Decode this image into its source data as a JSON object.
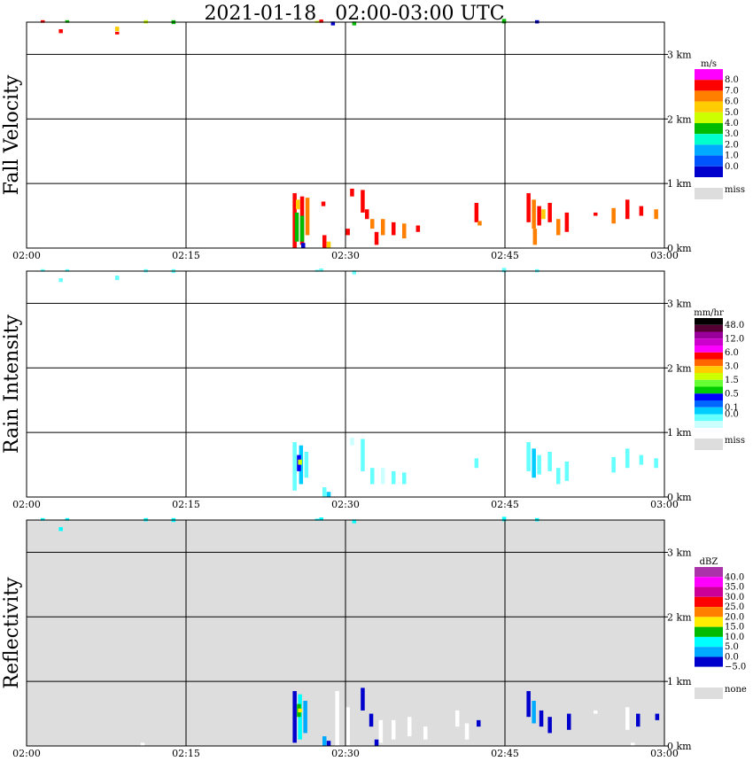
{
  "title": "2021-01-18   02:00-03:00 UTC",
  "time_ticks": [
    "02:00",
    "02:15",
    "02:30",
    "02:45",
    "03:00"
  ],
  "height_ticks": [
    "0 km",
    "1 km",
    "2 km",
    "3 km"
  ],
  "chart_data": [
    {
      "type": "heatmap",
      "name": "fall-velocity",
      "ylabel": "Fall Velocity",
      "xlim": [
        "02:00",
        "03:00"
      ],
      "ylim_km": [
        0,
        3.5
      ],
      "background": "#ffffff",
      "colorbar": {
        "unit": "m/s",
        "labels": [
          "8.0",
          "7.0",
          "6.0",
          "5.0",
          "4.0",
          "3.0",
          "2.0",
          "1.0",
          "0.0"
        ],
        "colors": [
          "#ff00ff",
          "#ff0000",
          "#ff7f00",
          "#ffcc00",
          "#ccff00",
          "#00bb00",
          "#00ffcc",
          "#00aaff",
          "#0055ff",
          "#0000cc"
        ],
        "missing_label": "miss",
        "missing_color": "#dddddd"
      },
      "cells": [
        {
          "t": 1.5,
          "h0": 3.49,
          "h1": 3.53,
          "c": 1
        },
        {
          "t": 3.2,
          "h0": 3.33,
          "h1": 3.39,
          "c": 1
        },
        {
          "t": 3.8,
          "h0": 3.49,
          "h1": 3.53,
          "c": 5
        },
        {
          "t": 8.5,
          "h0": 3.36,
          "h1": 3.43,
          "c": 3
        },
        {
          "t": 8.5,
          "h0": 3.31,
          "h1": 3.35,
          "c": 1
        },
        {
          "t": 11.2,
          "h0": 3.48,
          "h1": 3.53,
          "c": 4
        },
        {
          "t": 13.8,
          "h0": 3.47,
          "h1": 3.53,
          "c": 5
        },
        {
          "t": 27.3,
          "h0": 3.49,
          "h1": 3.52,
          "c": 4
        },
        {
          "t": 27.7,
          "h0": 3.49,
          "h1": 3.54,
          "c": 1
        },
        {
          "t": 28.8,
          "h0": 3.45,
          "h1": 3.51,
          "c": 9
        },
        {
          "t": 30.8,
          "h0": 3.45,
          "h1": 3.51,
          "c": 5
        },
        {
          "t": 44.9,
          "h0": 3.48,
          "h1": 3.55,
          "c": 5
        },
        {
          "t": 48.0,
          "h0": 3.48,
          "h1": 3.53,
          "c": 9
        },
        {
          "t": 25.2,
          "h0": 0.0,
          "h1": 0.85,
          "c": 1
        },
        {
          "t": 25.9,
          "h0": 0.05,
          "h1": 0.8,
          "c": 1
        },
        {
          "t": 26.4,
          "h0": 0.2,
          "h1": 0.78,
          "c": 2
        },
        {
          "t": 25.4,
          "h0": 0.1,
          "h1": 0.55,
          "c": 5
        },
        {
          "t": 25.9,
          "h0": 0.1,
          "h1": 0.5,
          "c": 5
        },
        {
          "t": 25.5,
          "h0": 0.6,
          "h1": 0.75,
          "c": 3
        },
        {
          "t": 26.0,
          "h0": 0.0,
          "h1": 0.08,
          "c": 9
        },
        {
          "t": 27.9,
          "h0": 0.65,
          "h1": 0.72,
          "c": 1
        },
        {
          "t": 28.0,
          "h0": 0.0,
          "h1": 0.2,
          "c": 1
        },
        {
          "t": 28.4,
          "h0": 0.0,
          "h1": 0.1,
          "c": 3
        },
        {
          "t": 30.6,
          "h0": 0.8,
          "h1": 0.92,
          "c": 1
        },
        {
          "t": 31.6,
          "h0": 0.55,
          "h1": 0.9,
          "c": 1
        },
        {
          "t": 32.0,
          "h0": 0.45,
          "h1": 0.6,
          "c": 1
        },
        {
          "t": 32.5,
          "h0": 0.3,
          "h1": 0.45,
          "c": 2
        },
        {
          "t": 30.2,
          "h0": 0.2,
          "h1": 0.3,
          "c": 1
        },
        {
          "t": 32.9,
          "h0": 0.05,
          "h1": 0.25,
          "c": 1
        },
        {
          "t": 33.5,
          "h0": 0.2,
          "h1": 0.45,
          "c": 2
        },
        {
          "t": 34.5,
          "h0": 0.2,
          "h1": 0.4,
          "c": 1
        },
        {
          "t": 35.5,
          "h0": 0.15,
          "h1": 0.38,
          "c": 2
        },
        {
          "t": 36.8,
          "h0": 0.25,
          "h1": 0.35,
          "c": 1
        },
        {
          "t": 42.3,
          "h0": 0.4,
          "h1": 0.7,
          "c": 1
        },
        {
          "t": 42.6,
          "h0": 0.35,
          "h1": 0.42,
          "c": 2
        },
        {
          "t": 47.2,
          "h0": 0.4,
          "h1": 0.85,
          "c": 1
        },
        {
          "t": 47.7,
          "h0": 0.3,
          "h1": 0.75,
          "c": 2
        },
        {
          "t": 48.2,
          "h0": 0.35,
          "h1": 0.65,
          "c": 1
        },
        {
          "t": 48.6,
          "h0": 0.45,
          "h1": 0.6,
          "c": 3
        },
        {
          "t": 49.2,
          "h0": 0.4,
          "h1": 0.7,
          "c": 1
        },
        {
          "t": 47.8,
          "h0": 0.05,
          "h1": 0.3,
          "c": 2
        },
        {
          "t": 50.0,
          "h0": 0.2,
          "h1": 0.45,
          "c": 2
        },
        {
          "t": 50.8,
          "h0": 0.25,
          "h1": 0.55,
          "c": 1
        },
        {
          "t": 53.5,
          "h0": 0.5,
          "h1": 0.55,
          "c": 1
        },
        {
          "t": 55.2,
          "h0": 0.38,
          "h1": 0.62,
          "c": 2
        },
        {
          "t": 56.5,
          "h0": 0.45,
          "h1": 0.75,
          "c": 1
        },
        {
          "t": 57.8,
          "h0": 0.5,
          "h1": 0.65,
          "c": 1
        },
        {
          "t": 59.2,
          "h0": 0.45,
          "h1": 0.6,
          "c": 2
        }
      ]
    },
    {
      "type": "heatmap",
      "name": "rain-intensity",
      "ylabel": "Rain Intensity",
      "xlim": [
        "02:00",
        "03:00"
      ],
      "ylim_km": [
        0,
        3.5
      ],
      "background": "#ffffff",
      "colorbar": {
        "unit": "mm/hr",
        "labels": [
          "48.0",
          "",
          "12.0",
          "",
          "6.0",
          "",
          "3.0",
          "",
          "1.5",
          "",
          "0.5",
          "",
          "0.1",
          "0.0"
        ],
        "colors": [
          "#000000",
          "#550033",
          "#990099",
          "#cc00cc",
          "#ff00ff",
          "#ff0000",
          "#ff6600",
          "#ffcc00",
          "#ccff00",
          "#66ff33",
          "#00cc00",
          "#0000ff",
          "#0066ff",
          "#00ccff",
          "#66ffff",
          "#ccffff"
        ],
        "missing_label": "miss",
        "missing_color": "#dddddd"
      },
      "cells": [
        {
          "t": 1.5,
          "h0": 3.49,
          "h1": 3.53,
          "c": 14
        },
        {
          "t": 3.2,
          "h0": 3.33,
          "h1": 3.39,
          "c": 14
        },
        {
          "t": 3.8,
          "h0": 3.49,
          "h1": 3.53,
          "c": 14
        },
        {
          "t": 8.5,
          "h0": 3.36,
          "h1": 3.43,
          "c": 14
        },
        {
          "t": 11.2,
          "h0": 3.48,
          "h1": 3.53,
          "c": 14
        },
        {
          "t": 13.8,
          "h0": 3.47,
          "h1": 3.53,
          "c": 14
        },
        {
          "t": 27.3,
          "h0": 3.49,
          "h1": 3.52,
          "c": 14
        },
        {
          "t": 27.7,
          "h0": 3.49,
          "h1": 3.54,
          "c": 14
        },
        {
          "t": 30.8,
          "h0": 3.45,
          "h1": 3.51,
          "c": 14
        },
        {
          "t": 44.9,
          "h0": 3.48,
          "h1": 3.55,
          "c": 14
        },
        {
          "t": 48.0,
          "h0": 3.48,
          "h1": 3.53,
          "c": 14
        },
        {
          "t": 25.2,
          "h0": 0.1,
          "h1": 0.85,
          "c": 14
        },
        {
          "t": 25.8,
          "h0": 0.2,
          "h1": 0.8,
          "c": 13
        },
        {
          "t": 26.3,
          "h0": 0.3,
          "h1": 0.7,
          "c": 14
        },
        {
          "t": 25.6,
          "h0": 0.4,
          "h1": 0.65,
          "c": 11
        },
        {
          "t": 25.7,
          "h0": 0.5,
          "h1": 0.58,
          "c": 8
        },
        {
          "t": 28.0,
          "h0": 0.0,
          "h1": 0.15,
          "c": 14
        },
        {
          "t": 28.4,
          "h0": 0.0,
          "h1": 0.08,
          "c": 13
        },
        {
          "t": 30.6,
          "h0": 0.8,
          "h1": 0.92,
          "c": 15
        },
        {
          "t": 31.6,
          "h0": 0.4,
          "h1": 0.9,
          "c": 14
        },
        {
          "t": 32.5,
          "h0": 0.2,
          "h1": 0.45,
          "c": 14
        },
        {
          "t": 33.5,
          "h0": 0.2,
          "h1": 0.45,
          "c": 15
        },
        {
          "t": 34.5,
          "h0": 0.2,
          "h1": 0.4,
          "c": 14
        },
        {
          "t": 35.5,
          "h0": 0.2,
          "h1": 0.38,
          "c": 14
        },
        {
          "t": 42.3,
          "h0": 0.45,
          "h1": 0.6,
          "c": 14
        },
        {
          "t": 47.2,
          "h0": 0.4,
          "h1": 0.85,
          "c": 14
        },
        {
          "t": 47.7,
          "h0": 0.3,
          "h1": 0.75,
          "c": 13
        },
        {
          "t": 48.2,
          "h0": 0.35,
          "h1": 0.65,
          "c": 14
        },
        {
          "t": 49.2,
          "h0": 0.4,
          "h1": 0.7,
          "c": 14
        },
        {
          "t": 50.0,
          "h0": 0.2,
          "h1": 0.45,
          "c": 14
        },
        {
          "t": 50.8,
          "h0": 0.25,
          "h1": 0.55,
          "c": 14
        },
        {
          "t": 55.2,
          "h0": 0.38,
          "h1": 0.62,
          "c": 14
        },
        {
          "t": 56.5,
          "h0": 0.45,
          "h1": 0.75,
          "c": 14
        },
        {
          "t": 57.8,
          "h0": 0.5,
          "h1": 0.65,
          "c": 14
        },
        {
          "t": 59.2,
          "h0": 0.45,
          "h1": 0.6,
          "c": 14
        }
      ]
    },
    {
      "type": "heatmap",
      "name": "reflectivity",
      "ylabel": "Reflectivity",
      "xlim": [
        "02:00",
        "03:00"
      ],
      "ylim_km": [
        0,
        3.5
      ],
      "background": "#dddddd",
      "colorbar": {
        "unit": "dBZ",
        "labels": [
          "40.0",
          "35.0",
          "30.0",
          "25.0",
          "20.0",
          "15.0",
          "10.0",
          "5.0",
          "0.0",
          "−5.0"
        ],
        "colors": [
          "#aa33aa",
          "#ff00ff",
          "#cc0099",
          "#ff0000",
          "#ff7f00",
          "#ffee00",
          "#00bb00",
          "#00ffff",
          "#00aaff",
          "#0000cc",
          "#ffffff"
        ],
        "missing_label": "none",
        "missing_color": "#dddddd"
      },
      "cells": [
        {
          "t": 1.5,
          "h0": 3.49,
          "h1": 3.53,
          "c": 7
        },
        {
          "t": 3.2,
          "h0": 3.33,
          "h1": 3.39,
          "c": 7
        },
        {
          "t": 3.8,
          "h0": 3.49,
          "h1": 3.53,
          "c": 7
        },
        {
          "t": 11.2,
          "h0": 3.48,
          "h1": 3.53,
          "c": 7
        },
        {
          "t": 13.8,
          "h0": 3.47,
          "h1": 3.53,
          "c": 7
        },
        {
          "t": 27.3,
          "h0": 3.49,
          "h1": 3.52,
          "c": 7
        },
        {
          "t": 27.7,
          "h0": 3.49,
          "h1": 3.54,
          "c": 7
        },
        {
          "t": 30.8,
          "h0": 3.45,
          "h1": 3.51,
          "c": 7
        },
        {
          "t": 44.9,
          "h0": 3.48,
          "h1": 3.55,
          "c": 7
        },
        {
          "t": 48.0,
          "h0": 3.48,
          "h1": 3.53,
          "c": 7
        },
        {
          "t": 25.2,
          "h0": 0.05,
          "h1": 0.85,
          "c": 9
        },
        {
          "t": 25.7,
          "h0": 0.1,
          "h1": 0.8,
          "c": 7
        },
        {
          "t": 26.2,
          "h0": 0.2,
          "h1": 0.7,
          "c": 8
        },
        {
          "t": 25.6,
          "h0": 0.45,
          "h1": 0.65,
          "c": 6
        },
        {
          "t": 25.7,
          "h0": 0.52,
          "h1": 0.58,
          "c": 5
        },
        {
          "t": 28.0,
          "h0": 0.0,
          "h1": 0.15,
          "c": 8
        },
        {
          "t": 28.4,
          "h0": 0.0,
          "h1": 0.08,
          "c": 9
        },
        {
          "t": 10.9,
          "h0": 0.0,
          "h1": 0.05,
          "c": 10
        },
        {
          "t": 29.2,
          "h0": 0.0,
          "h1": 0.85,
          "c": 10
        },
        {
          "t": 30.2,
          "h0": 0.0,
          "h1": 0.6,
          "c": 10
        },
        {
          "t": 31.6,
          "h0": 0.55,
          "h1": 0.9,
          "c": 9
        },
        {
          "t": 32.4,
          "h0": 0.3,
          "h1": 0.5,
          "c": 9
        },
        {
          "t": 32.9,
          "h0": 0.0,
          "h1": 0.1,
          "c": 9
        },
        {
          "t": 33.3,
          "h0": 0.05,
          "h1": 0.4,
          "c": 10
        },
        {
          "t": 34.5,
          "h0": 0.1,
          "h1": 0.4,
          "c": 10
        },
        {
          "t": 36.0,
          "h0": 0.15,
          "h1": 0.45,
          "c": 10
        },
        {
          "t": 37.5,
          "h0": 0.1,
          "h1": 0.3,
          "c": 10
        },
        {
          "t": 40.5,
          "h0": 0.3,
          "h1": 0.55,
          "c": 10
        },
        {
          "t": 41.4,
          "h0": 0.1,
          "h1": 0.35,
          "c": 10
        },
        {
          "t": 42.5,
          "h0": 0.3,
          "h1": 0.4,
          "c": 9
        },
        {
          "t": 47.2,
          "h0": 0.45,
          "h1": 0.85,
          "c": 9
        },
        {
          "t": 47.7,
          "h0": 0.35,
          "h1": 0.7,
          "c": 8
        },
        {
          "t": 48.4,
          "h0": 0.3,
          "h1": 0.55,
          "c": 9
        },
        {
          "t": 49.2,
          "h0": 0.2,
          "h1": 0.45,
          "c": 9
        },
        {
          "t": 51.0,
          "h0": 0.25,
          "h1": 0.5,
          "c": 9
        },
        {
          "t": 53.5,
          "h0": 0.5,
          "h1": 0.55,
          "c": 10
        },
        {
          "t": 56.5,
          "h0": 0.25,
          "h1": 0.6,
          "c": 10
        },
        {
          "t": 57.5,
          "h0": 0.3,
          "h1": 0.5,
          "c": 9
        },
        {
          "t": 59.3,
          "h0": 0.4,
          "h1": 0.5,
          "c": 9
        },
        {
          "t": 57.0,
          "h0": 0.0,
          "h1": 0.05,
          "c": 10
        }
      ]
    }
  ]
}
